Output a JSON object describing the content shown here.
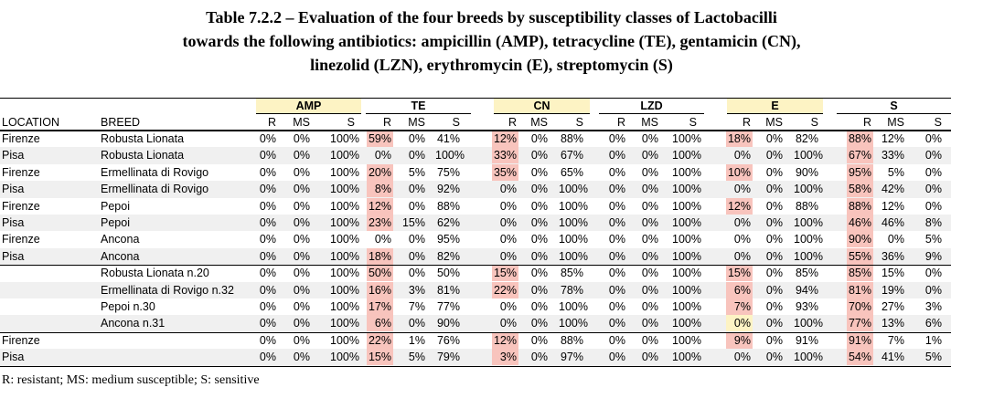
{
  "title_lines": [
    "Table 7.2.2 – Evaluation of the four breeds by susceptibility classes of Lactobacilli",
    "towards the following antibiotics: ampicillin (AMP), tetracycline (TE), gentamicin (CN),",
    "linezolid (LZN), erythromycin (E), streptomycin (S)"
  ],
  "table": {
    "groups": [
      "AMP",
      "TE",
      "CN",
      "LZD",
      "E",
      "S"
    ],
    "header": [
      "LOCATION",
      "BREED",
      "R",
      "MS",
      "S",
      "R",
      "MS",
      "S",
      "R",
      "MS",
      "S",
      "R",
      "MS",
      "S",
      "R",
      "MS",
      "S",
      "R",
      "MS",
      "S"
    ],
    "rows": [
      [
        "Firenze",
        "Robusta Lionata",
        "0%",
        "0%",
        "100%",
        "59%",
        "0%",
        "41%",
        "12%",
        "0%",
        "88%",
        "0%",
        "0%",
        "100%",
        "18%",
        "0%",
        "82%",
        "88%",
        "12%",
        "0%"
      ],
      [
        "Pisa",
        "Robusta Lionata",
        "0%",
        "0%",
        "100%",
        "0%",
        "0%",
        "100%",
        "33%",
        "0%",
        "67%",
        "0%",
        "0%",
        "100%",
        "0%",
        "0%",
        "100%",
        "67%",
        "33%",
        "0%"
      ],
      [
        "Firenze",
        "Ermellinata di Rovigo",
        "0%",
        "0%",
        "100%",
        "20%",
        "5%",
        "75%",
        "35%",
        "0%",
        "65%",
        "0%",
        "0%",
        "100%",
        "10%",
        "0%",
        "90%",
        "95%",
        "5%",
        "0%"
      ],
      [
        "Pisa",
        "Ermellinata di Rovigo",
        "0%",
        "0%",
        "100%",
        "8%",
        "0%",
        "92%",
        "0%",
        "0%",
        "100%",
        "0%",
        "0%",
        "100%",
        "0%",
        "0%",
        "100%",
        "58%",
        "42%",
        "0%"
      ],
      [
        "Firenze",
        "Pepoi",
        "0%",
        "0%",
        "100%",
        "12%",
        "0%",
        "88%",
        "0%",
        "0%",
        "100%",
        "0%",
        "0%",
        "100%",
        "12%",
        "0%",
        "88%",
        "88%",
        "12%",
        "0%"
      ],
      [
        "Pisa",
        "Pepoi",
        "0%",
        "0%",
        "100%",
        "23%",
        "15%",
        "62%",
        "0%",
        "0%",
        "100%",
        "0%",
        "0%",
        "100%",
        "0%",
        "0%",
        "100%",
        "46%",
        "46%",
        "8%"
      ],
      [
        "Firenze",
        "Ancona",
        "0%",
        "0%",
        "100%",
        "0%",
        "0%",
        "95%",
        "0%",
        "0%",
        "100%",
        "0%",
        "0%",
        "100%",
        "0%",
        "0%",
        "100%",
        "90%",
        "0%",
        "5%"
      ],
      [
        "Pisa",
        "Ancona",
        "0%",
        "0%",
        "100%",
        "18%",
        "0%",
        "82%",
        "0%",
        "0%",
        "100%",
        "0%",
        "0%",
        "100%",
        "0%",
        "0%",
        "100%",
        "55%",
        "36%",
        "9%"
      ],
      [
        null,
        "Robusta Lionata n.20",
        "0%",
        "0%",
        "100%",
        "50%",
        "0%",
        "50%",
        "15%",
        "0%",
        "85%",
        "0%",
        "0%",
        "100%",
        "15%",
        "0%",
        "85%",
        "85%",
        "15%",
        "0%"
      ],
      [
        null,
        "Ermellinata di Rovigo n.32",
        "0%",
        "0%",
        "100%",
        "16%",
        "3%",
        "81%",
        "22%",
        "0%",
        "78%",
        "0%",
        "0%",
        "100%",
        "6%",
        "0%",
        "94%",
        "81%",
        "19%",
        "0%"
      ],
      [
        null,
        "Pepoi n.30",
        "0%",
        "0%",
        "100%",
        "17%",
        "7%",
        "77%",
        "0%",
        "0%",
        "100%",
        "0%",
        "0%",
        "100%",
        "7%",
        "0%",
        "93%",
        "70%",
        "27%",
        "3%"
      ],
      [
        null,
        "Ancona n.31",
        "0%",
        "0%",
        "100%",
        "6%",
        "0%",
        "90%",
        "0%",
        "0%",
        "100%",
        "0%",
        "0%",
        "100%",
        "0%",
        "0%",
        "100%",
        "77%",
        "13%",
        "6%"
      ],
      [
        "Firenze",
        null,
        "0%",
        "0%",
        "100%",
        "22%",
        "1%",
        "76%",
        "12%",
        "0%",
        "88%",
        "0%",
        "0%",
        "100%",
        "9%",
        "0%",
        "91%",
        "91%",
        "7%",
        "1%"
      ],
      [
        "Pisa",
        null,
        "0%",
        "0%",
        "100%",
        "15%",
        "5%",
        "79%",
        "3%",
        "0%",
        "97%",
        "0%",
        "0%",
        "100%",
        "0%",
        "0%",
        "100%",
        "54%",
        "41%",
        "5%"
      ]
    ]
  },
  "footnote": "R: resistant; MS: medium susceptible; S: sensitive"
}
